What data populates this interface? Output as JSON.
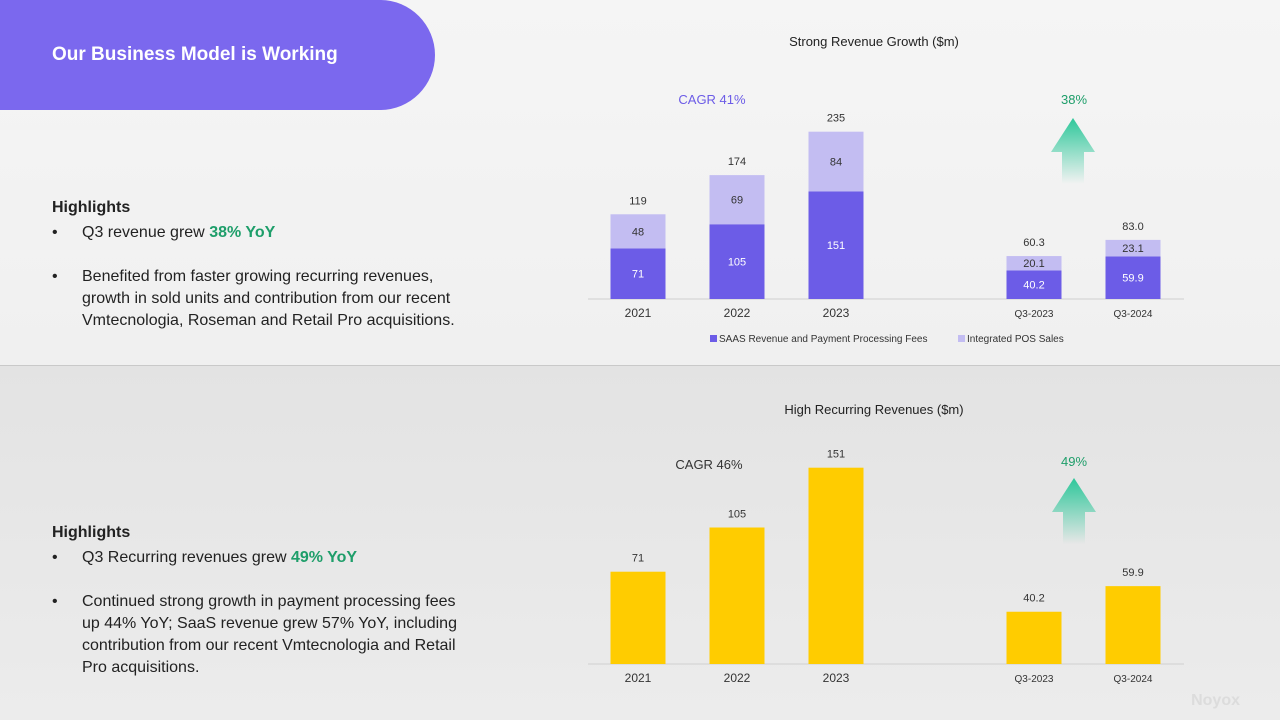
{
  "slide": {
    "title": "Our Business Model is Working",
    "watermark": "Noyox"
  },
  "top": {
    "highlights_title": "Highlights",
    "bullet1_pre": "Q3 revenue grew ",
    "bullet1_em": "38% YoY",
    "bullet2": "Benefited from faster growing recurring revenues, growth in sold units and contribution from our recent Vmtecnologia, Roseman and Retail Pro acquisitions."
  },
  "bottom": {
    "highlights_title": "Highlights",
    "bullet1_pre": "Q3 Recurring revenues grew ",
    "bullet1_em": "49% YoY",
    "bullet2": "Continued strong growth in payment processing fees up 44% YoY; SaaS revenue grew 57% YoY, including contribution from our recent Vmtecnologia and Retail Pro acquisitions."
  },
  "chart_data": [
    {
      "type": "bar",
      "stacked": true,
      "title": "Strong Revenue Growth ($m)",
      "categories": [
        "2021",
        "2022",
        "2023",
        "Q3-2023",
        "Q3-2024"
      ],
      "series": [
        {
          "name": "SAAS Revenue and Payment Processing Fees",
          "values": [
            71,
            105,
            151,
            40.2,
            59.9
          ],
          "labels": [
            "71",
            "105",
            "151",
            "40.2",
            "59.9"
          ],
          "color": "#6c5ce7"
        },
        {
          "name": "Integrated POS Sales",
          "values": [
            48,
            69,
            84,
            20.1,
            23.1
          ],
          "labels": [
            "48",
            "69",
            "84",
            "20.1",
            "23.1"
          ],
          "color": "#c3bdf2"
        }
      ],
      "totals": [
        "119",
        "174",
        "235",
        "60.3",
        "83.0"
      ],
      "annotations": {
        "cagr": "CAGR 41%",
        "growth": "38%"
      },
      "legend": "bottom",
      "grid": false
    },
    {
      "type": "bar",
      "title": "High Recurring Revenues ($m)",
      "categories": [
        "2021",
        "2022",
        "2023",
        "Q3-2023",
        "Q3-2024"
      ],
      "values": [
        71,
        105,
        151,
        40.2,
        59.9
      ],
      "labels": [
        "71",
        "105",
        "151",
        "40.2",
        "59.9"
      ],
      "color": "#ffcc00",
      "annotations": {
        "cagr": "CAGR 46%",
        "growth": "49%"
      },
      "grid": false
    }
  ]
}
